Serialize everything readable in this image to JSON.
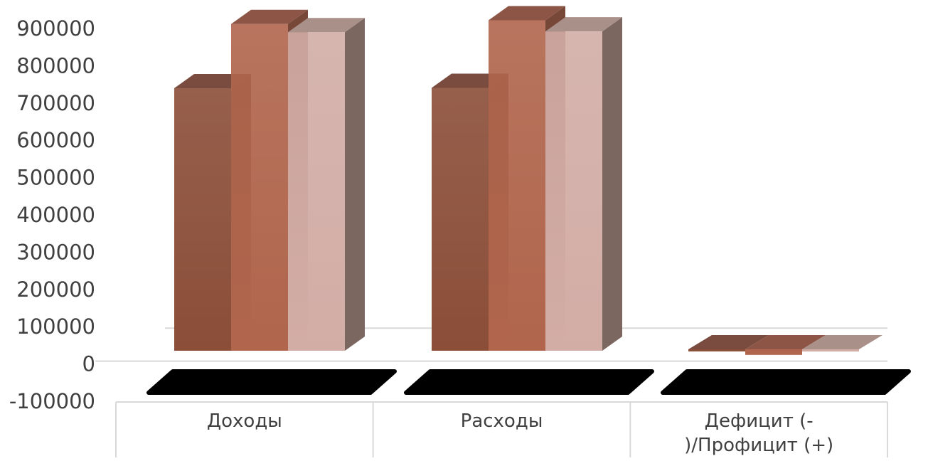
{
  "chart_data": {
    "type": "bar",
    "categories": [
      "Доходы",
      "Расходы",
      "Дефицит (-\n)/Профицит (+)"
    ],
    "series": [
      {
        "values": [
          707000,
          708000,
          -3000
        ]
      },
      {
        "values": [
          880000,
          890000,
          -15000
        ]
      },
      {
        "values": [
          858000,
          860000,
          -6000
        ]
      }
    ],
    "ylim": [
      -100000,
      900000
    ],
    "y_ticks": [
      "900000",
      "800000",
      "700000",
      "600000",
      "500000",
      "400000",
      "300000",
      "200000",
      "100000",
      "0",
      "-100000"
    ],
    "grid": true,
    "legend": "none",
    "colors": {
      "series_front": [
        "#8b4e38",
        "#b0654c",
        "#d2ada6"
      ],
      "series_top": [
        "#7a4c40",
        "#8d5545",
        "#a99089"
      ],
      "series_side": [
        "#6a4438",
        "#774838",
        "#7c6660"
      ],
      "floor_shadow": "#000000",
      "axis_text": "#404040",
      "grid_line": "#d9d9d9"
    }
  }
}
